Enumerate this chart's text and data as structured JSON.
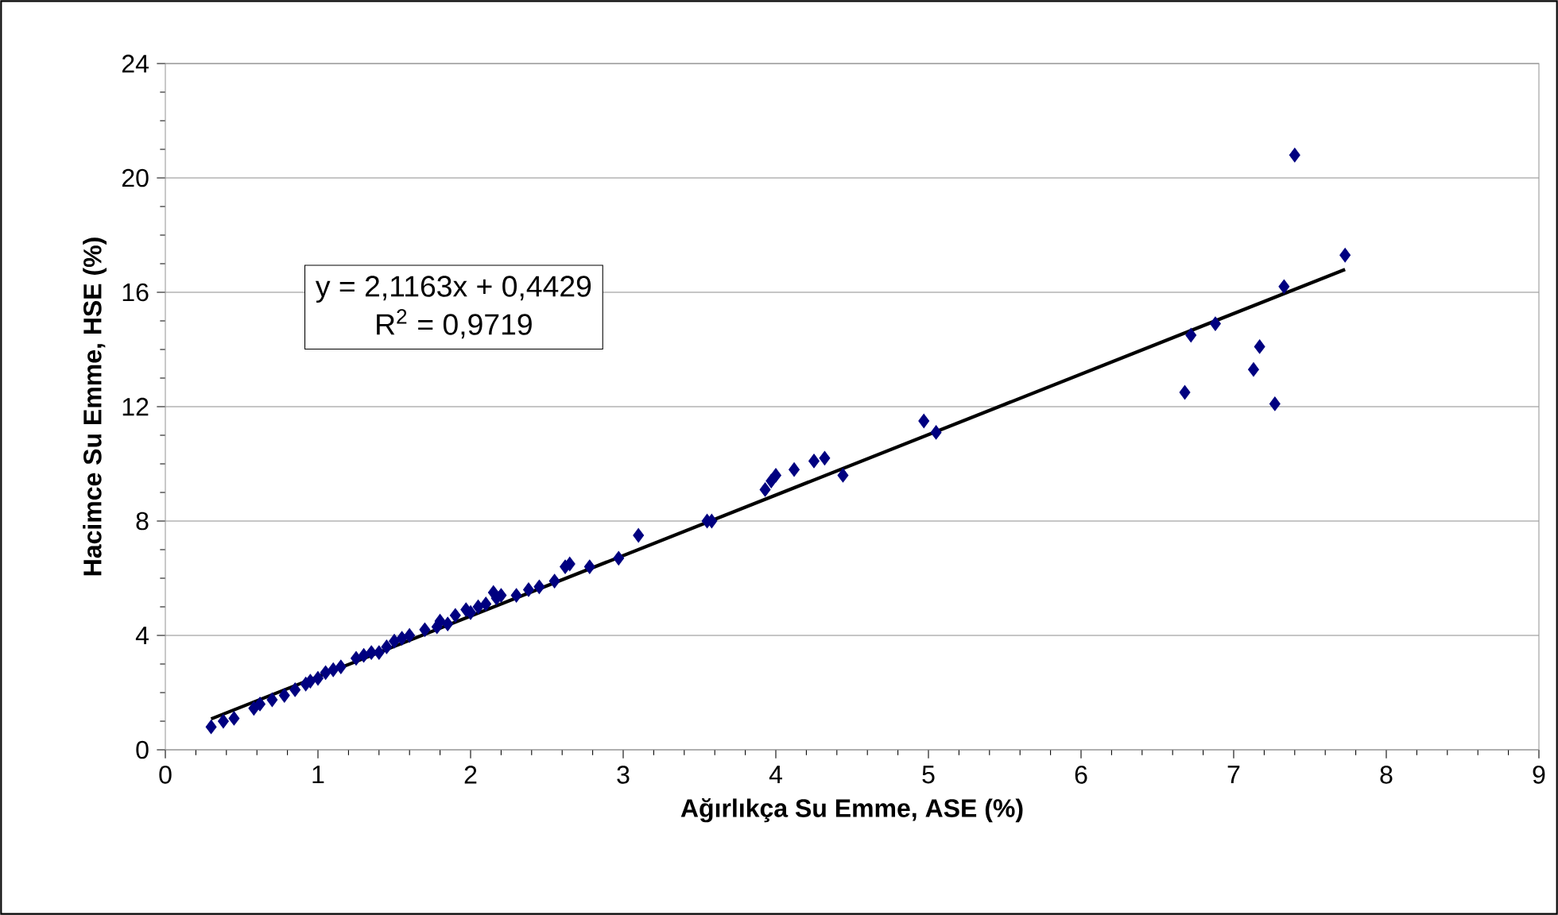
{
  "chart_data": {
    "type": "scatter",
    "xlabel": "Ağırlıkça Su Emme, ASE (%)",
    "ylabel": "Hacimce Su Emme, HSE (%)",
    "xlim": [
      0,
      9
    ],
    "xticks": [
      0,
      1,
      2,
      3,
      4,
      5,
      6,
      7,
      8,
      9
    ],
    "ylim": [
      0,
      24
    ],
    "yticks": [
      0,
      4,
      8,
      12,
      16,
      20,
      24
    ],
    "grid": "y",
    "marker": "diamond",
    "annotations": [
      "y = 2,1163x + 0,4429",
      "R$^{2}$ = 0,9719"
    ],
    "series": [
      {
        "type": "scatter",
        "color": "#000080",
        "x": [
          7.4,
          7.73,
          7.33,
          6.88,
          6.72,
          7.17,
          7.13,
          6.68,
          7.27,
          4.97,
          5.05,
          4.32,
          4.25,
          4.12,
          4.44,
          4.0,
          3.97,
          3.93,
          3.58,
          3.55,
          3.1,
          2.97,
          2.78,
          2.65,
          2.62,
          2.55,
          2.45,
          2.38,
          2.3,
          2.2,
          2.15,
          2.17,
          2.05,
          1.97,
          1.9,
          1.8,
          1.78,
          1.7,
          1.6,
          1.5,
          1.45,
          1.35,
          1.25,
          1.15,
          1.05,
          1.0,
          0.92,
          0.85,
          0.78,
          0.7,
          0.62,
          0.58,
          0.45,
          0.38,
          0.3,
          1.85,
          1.4,
          1.1,
          0.95,
          1.55,
          1.3,
          2.0,
          2.1
        ],
        "values": [
          20.8,
          17.3,
          16.2,
          14.9,
          14.5,
          14.1,
          13.3,
          12.5,
          12.1,
          11.5,
          11.1,
          10.2,
          10.1,
          9.8,
          9.6,
          9.6,
          9.4,
          9.1,
          8.0,
          8.0,
          7.5,
          6.7,
          6.4,
          6.5,
          6.4,
          5.9,
          5.7,
          5.6,
          5.4,
          5.4,
          5.5,
          5.3,
          5.0,
          4.9,
          4.7,
          4.5,
          4.3,
          4.2,
          4.0,
          3.8,
          3.6,
          3.4,
          3.2,
          2.9,
          2.7,
          2.5,
          2.3,
          2.1,
          1.9,
          1.75,
          1.6,
          1.45,
          1.1,
          1.0,
          0.8,
          4.4,
          3.4,
          2.8,
          2.4,
          3.9,
          3.3,
          4.8,
          5.1
        ]
      },
      {
        "type": "line",
        "color": "#000000",
        "marker": "none",
        "line_style": "solid",
        "x": [
          0.3,
          7.73
        ],
        "values": [
          1.08,
          16.8
        ]
      }
    ]
  }
}
